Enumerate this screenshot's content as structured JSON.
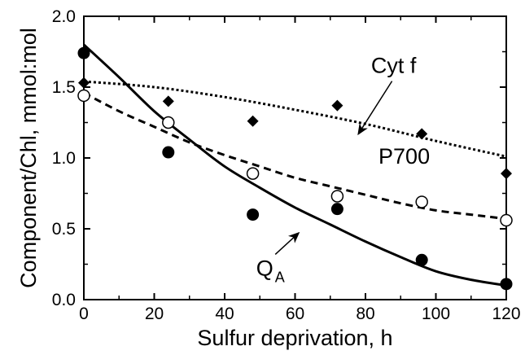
{
  "chart_data": {
    "type": "scatter",
    "xlabel": "Sulfur deprivation,  h",
    "ylabel": "Component/Chl,  mmol:mol",
    "xlim": [
      0,
      120
    ],
    "ylim": [
      0,
      2.0
    ],
    "x_ticks": [
      0,
      20,
      40,
      60,
      80,
      100,
      120
    ],
    "x_tick_labels": [
      "0",
      "20",
      "40",
      "60",
      "80",
      "100",
      "120"
    ],
    "y_ticks": [
      0,
      0.5,
      1.0,
      1.5,
      2.0
    ],
    "y_tick_labels": [
      "0.0",
      "0.5",
      "1.0",
      "1.5",
      "2.0"
    ],
    "grid": false,
    "series": [
      {
        "name": "Cyt f",
        "marker": "diamond-filled",
        "line_style": "dotted",
        "x": [
          0,
          24,
          48,
          72,
          96,
          120
        ],
        "y": [
          1.53,
          1.4,
          1.26,
          1.37,
          1.17,
          0.89
        ],
        "fit": [
          [
            0,
            1.54
          ],
          [
            20,
            1.5
          ],
          [
            40,
            1.43
          ],
          [
            60,
            1.34
          ],
          [
            80,
            1.24
          ],
          [
            100,
            1.12
          ],
          [
            120,
            1.01
          ]
        ]
      },
      {
        "name": "P700",
        "marker": "circle-open",
        "line_style": "dashed",
        "x": [
          0,
          24,
          48,
          72,
          96,
          120
        ],
        "y": [
          1.44,
          1.25,
          0.89,
          0.73,
          0.69,
          0.56
        ],
        "fit": [
          [
            0,
            1.46
          ],
          [
            10,
            1.33
          ],
          [
            20,
            1.22
          ],
          [
            30,
            1.11
          ],
          [
            40,
            1.02
          ],
          [
            50,
            0.94
          ],
          [
            60,
            0.86
          ],
          [
            70,
            0.8
          ],
          [
            80,
            0.74
          ],
          [
            90,
            0.68
          ],
          [
            100,
            0.63
          ],
          [
            110,
            0.6
          ],
          [
            120,
            0.57
          ]
        ]
      },
      {
        "name": "QA",
        "name_main": "Q",
        "name_sub": "A",
        "marker": "circle-filled",
        "line_style": "solid",
        "x": [
          0,
          24,
          48,
          72,
          96,
          120
        ],
        "y": [
          1.74,
          1.04,
          0.6,
          0.64,
          0.28,
          0.11
        ],
        "fit": [
          [
            0,
            1.8
          ],
          [
            10,
            1.57
          ],
          [
            20,
            1.33
          ],
          [
            30,
            1.13
          ],
          [
            40,
            0.94
          ],
          [
            50,
            0.79
          ],
          [
            60,
            0.65
          ],
          [
            70,
            0.53
          ],
          [
            80,
            0.41
          ],
          [
            90,
            0.3
          ],
          [
            100,
            0.2
          ],
          [
            110,
            0.14
          ],
          [
            120,
            0.1
          ]
        ]
      }
    ],
    "annotations": [
      {
        "series": "Cyt f",
        "text": "Cyt f",
        "arrow_to": [
          78,
          1.17
        ],
        "label_at": [
          88,
          1.6
        ]
      },
      {
        "series": "P700",
        "text": "P700",
        "label_at": [
          91,
          0.96
        ]
      },
      {
        "series": "QA",
        "text": "Q",
        "sub": "A",
        "arrow_to": [
          61,
          0.47
        ],
        "label_at": [
          53,
          0.17
        ]
      }
    ]
  }
}
